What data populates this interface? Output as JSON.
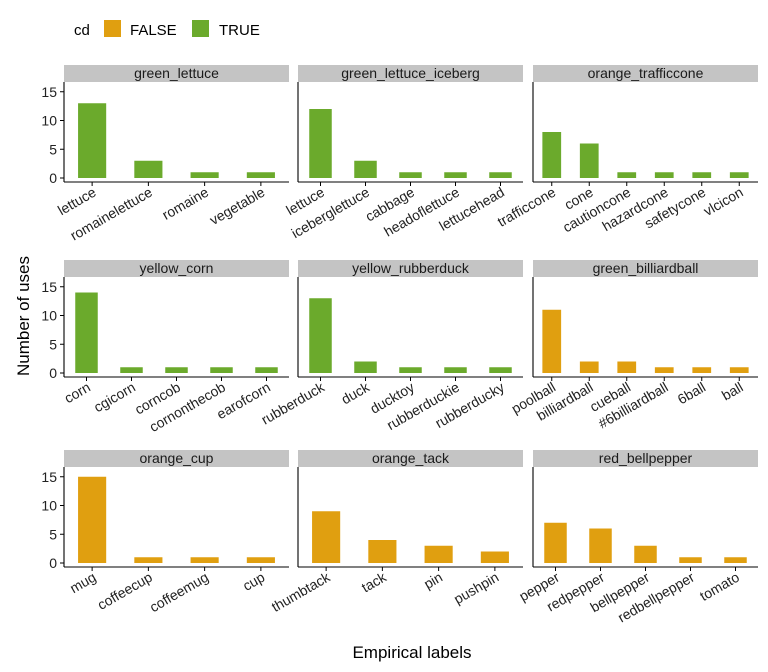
{
  "chart_data": {
    "type": "bar",
    "xlabel": "Empirical labels",
    "ylabel": "Number of uses",
    "ylim": [
      0,
      16
    ],
    "yticks": [
      0,
      5,
      10,
      15
    ],
    "grid": false,
    "legend": {
      "title": "cd",
      "placement": "top-left",
      "entries": [
        {
          "label": "FALSE",
          "color": "#E09F10"
        },
        {
          "label": "TRUE",
          "color": "#6BAA2C"
        }
      ]
    },
    "facets": [
      {
        "title": "green_lettuce",
        "cd": "TRUE",
        "categories": [
          "lettuce",
          "romainelettuce",
          "romaine",
          "vegetable"
        ],
        "values": [
          13,
          3,
          1,
          1
        ]
      },
      {
        "title": "green_lettuce_iceberg",
        "cd": "TRUE",
        "categories": [
          "lettuce",
          "iceberglettuce",
          "cabbage",
          "headoflettuce",
          "lettucehead"
        ],
        "values": [
          12,
          3,
          1,
          1,
          1
        ]
      },
      {
        "title": "orange_trafficcone",
        "cd": "TRUE",
        "categories": [
          "trafficcone",
          "cone",
          "cautioncone",
          "hazardcone",
          "safetycone",
          "vlcicon"
        ],
        "values": [
          8,
          6,
          1,
          1,
          1,
          1
        ]
      },
      {
        "title": "yellow_corn",
        "cd": "TRUE",
        "categories": [
          "corn",
          "cgicorn",
          "corncob",
          "cornonthecob",
          "earofcorn"
        ],
        "values": [
          14,
          1,
          1,
          1,
          1
        ]
      },
      {
        "title": "yellow_rubberduck",
        "cd": "TRUE",
        "categories": [
          "rubberduck",
          "duck",
          "ducktoy",
          "rubberduckie",
          "rubberducky"
        ],
        "values": [
          13,
          2,
          1,
          1,
          1
        ]
      },
      {
        "title": "green_billiardball",
        "cd": "FALSE",
        "categories": [
          "poolball",
          "billiardball",
          "cueball",
          "#6billiardball",
          "6ball",
          "ball"
        ],
        "values": [
          11,
          2,
          2,
          1,
          1,
          1
        ]
      },
      {
        "title": "orange_cup",
        "cd": "FALSE",
        "categories": [
          "mug",
          "coffeecup",
          "coffeemug",
          "cup"
        ],
        "values": [
          15,
          1,
          1,
          1
        ]
      },
      {
        "title": "orange_tack",
        "cd": "FALSE",
        "categories": [
          "thumbtack",
          "tack",
          "pin",
          "pushpin"
        ],
        "values": [
          9,
          4,
          3,
          2
        ]
      },
      {
        "title": "red_bellpepper",
        "cd": "FALSE",
        "categories": [
          "pepper",
          "redpepper",
          "bellpepper",
          "redbellpepper",
          "tomato"
        ],
        "values": [
          7,
          6,
          3,
          1,
          1
        ]
      }
    ]
  }
}
